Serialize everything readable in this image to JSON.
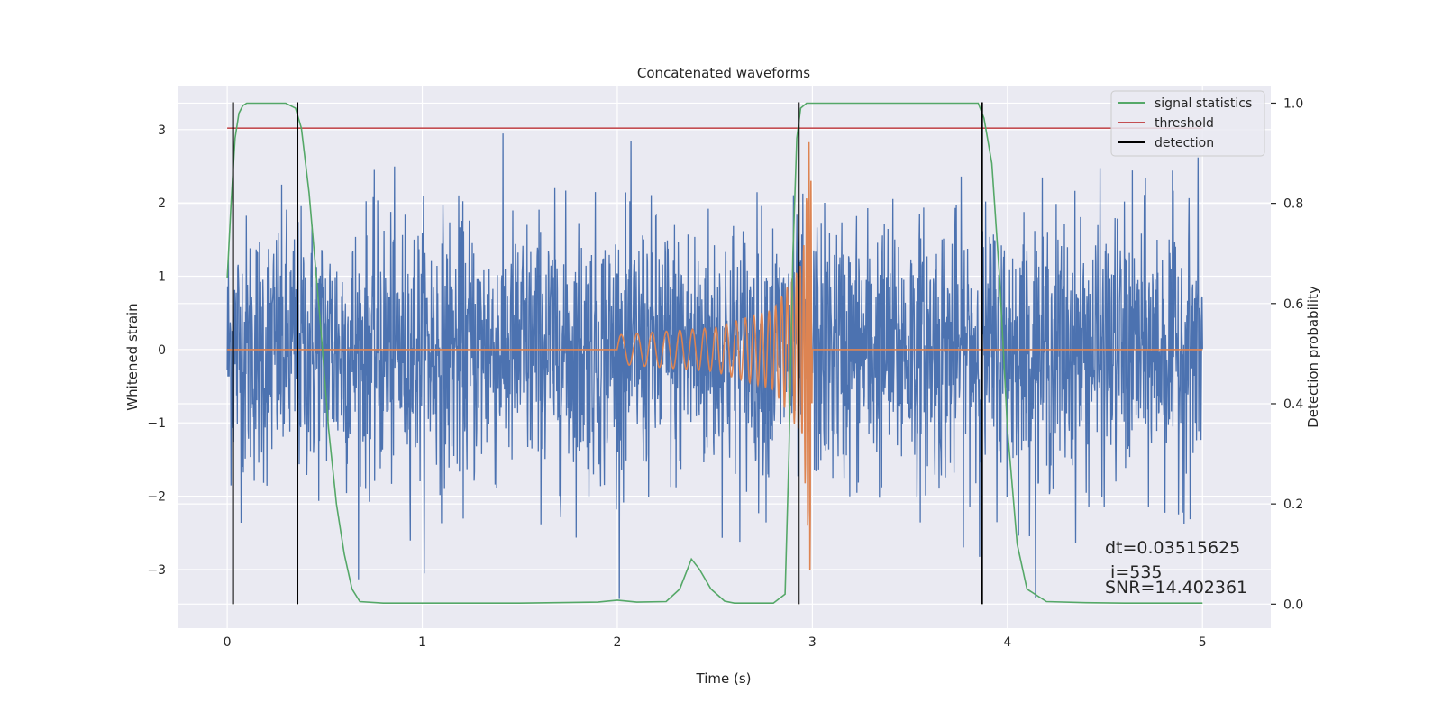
{
  "chart_data": {
    "type": "line",
    "title": "Concatenated waveforms",
    "xlabel": "Time (s)",
    "ylabel": "Whitened strain",
    "y2label": "Detection probability",
    "xlim": [
      -0.25,
      5.35
    ],
    "ylim": [
      -3.8,
      3.6
    ],
    "y2lim": [
      -0.048,
      1.035
    ],
    "xticks": [
      0,
      1,
      2,
      3,
      4,
      5
    ],
    "yticks": [
      -3,
      -2,
      -1,
      0,
      1,
      2,
      3
    ],
    "y2ticks": [
      0.0,
      0.2,
      0.4,
      0.6,
      0.8,
      1.0
    ],
    "xtick_labels": [
      "0",
      "1",
      "2",
      "3",
      "4",
      "5"
    ],
    "ytick_labels": [
      "−3",
      "−2",
      "−1",
      "0",
      "1",
      "2",
      "3"
    ],
    "y2tick_labels": [
      "0.0",
      "0.2",
      "0.4",
      "0.6",
      "0.8",
      "1.0"
    ],
    "grid": true,
    "legend_position": "top-right",
    "legend": [
      {
        "label": "signal statistics",
        "color": "#55a868"
      },
      {
        "label": "threshold",
        "color": "#c44e52"
      },
      {
        "label": "detection",
        "color": "#000000"
      }
    ],
    "series": [
      {
        "kind": "noise",
        "color": "#4c72b0",
        "x_range": [
          0,
          5
        ],
        "typical_amplitude": 0.9,
        "max_peak": 2.95,
        "min_trough": -3.4
      },
      {
        "kind": "chirp",
        "color": "#dd8452",
        "x": [
          0,
          2.0,
          2.5,
          2.8,
          2.95,
          2.99,
          3.0,
          5.0
        ],
        "envelope": [
          0,
          0.2,
          0.3,
          0.55,
          1.2,
          3.2,
          0,
          0
        ]
      },
      {
        "name": "signal statistics",
        "axis": "right",
        "color": "#55a868",
        "x": [
          0.0,
          0.02,
          0.04,
          0.06,
          0.08,
          0.1,
          0.15,
          0.3,
          0.35,
          0.38,
          0.42,
          0.48,
          0.52,
          0.56,
          0.6,
          0.64,
          0.68,
          0.8,
          1.5,
          1.9,
          2.0,
          2.1,
          2.25,
          2.32,
          2.38,
          2.42,
          2.48,
          2.55,
          2.6,
          2.8,
          2.86,
          2.88,
          2.9,
          2.92,
          2.94,
          2.97,
          3.0,
          3.05,
          3.85,
          3.88,
          3.92,
          3.96,
          4.0,
          4.05,
          4.1,
          4.2,
          4.4,
          4.6,
          5.0
        ],
        "y": [
          0.65,
          0.8,
          0.93,
          0.98,
          0.995,
          1.0,
          1.0,
          1.0,
          0.99,
          0.95,
          0.82,
          0.55,
          0.35,
          0.2,
          0.1,
          0.03,
          0.005,
          0.002,
          0.002,
          0.004,
          0.008,
          0.004,
          0.005,
          0.03,
          0.09,
          0.07,
          0.03,
          0.006,
          0.002,
          0.002,
          0.02,
          0.3,
          0.7,
          0.93,
          0.99,
          1.0,
          1.0,
          1.0,
          1.0,
          0.97,
          0.88,
          0.65,
          0.35,
          0.12,
          0.03,
          0.005,
          0.003,
          0.002,
          0.002
        ]
      },
      {
        "name": "threshold",
        "axis": "right",
        "color": "#c44e52",
        "x": [
          0,
          5
        ],
        "y": [
          0.95,
          0.95
        ]
      }
    ],
    "detections": [
      0.03,
      0.36,
      2.93,
      3.87
    ],
    "annotations": [
      "dt=0.03515625",
      " i=535",
      "SNR=14.402361"
    ]
  }
}
